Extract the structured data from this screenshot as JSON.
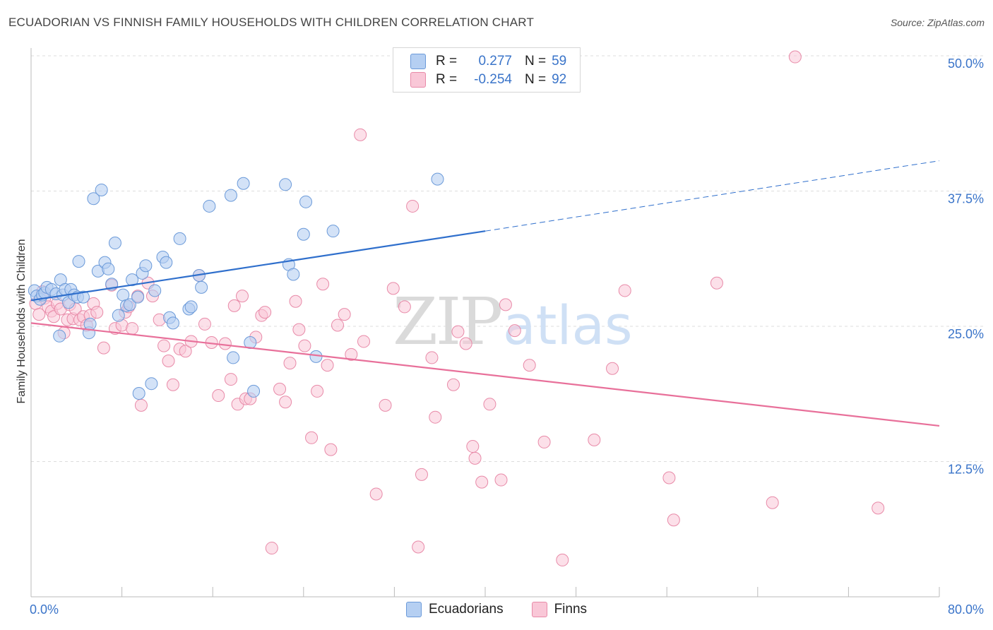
{
  "title": "ECUADORIAN VS FINNISH FAMILY HOUSEHOLDS WITH CHILDREN CORRELATION CHART",
  "source": "Source: ZipAtlas.com",
  "watermark": {
    "zip": "ZIP",
    "atlas": "atlas"
  },
  "legend": {
    "ecuadorians": {
      "r_label": "R =",
      "r_value": "0.277",
      "n_label": "N =",
      "n_value": "59"
    },
    "finns": {
      "r_label": "R =",
      "r_value": "-0.254",
      "n_label": "N =",
      "n_value": "92"
    }
  },
  "colors": {
    "blue_fill": "#b5cff2",
    "blue_stroke": "#6b9ad9",
    "blue_line": "#2f6fcc",
    "pink_fill": "#f9c7d7",
    "pink_stroke": "#e88aa8",
    "pink_line": "#e8709a",
    "tick_label": "#3a74c9",
    "grid": "#dddddd"
  },
  "chart_data": {
    "type": "scatter",
    "title": "ECUADORIAN VS FINNISH FAMILY HOUSEHOLDS WITH CHILDREN CORRELATION CHART",
    "xlabel": "",
    "ylabel": "Family Households with Children",
    "xlim": [
      0,
      80
    ],
    "ylim": [
      0,
      50
    ],
    "x_tick_labels": [
      "0.0%",
      "80.0%"
    ],
    "y_ticks": [
      12.5,
      25.0,
      37.5,
      50.0
    ],
    "y_tick_labels": [
      "12.5%",
      "25.0%",
      "37.5%",
      "50.0%"
    ],
    "series": [
      {
        "name": "Ecuadorians",
        "r": 0.277,
        "n": 59,
        "trend": {
          "x_start": 0,
          "y_start": 27.4,
          "x_solid_end": 40,
          "y_solid_end": 33.8,
          "x_end": 80,
          "y_end": 40.3
        },
        "points": [
          [
            0.3,
            28.3
          ],
          [
            0.5,
            27.8
          ],
          [
            0.8,
            27.5
          ],
          [
            1.0,
            27.9
          ],
          [
            1.2,
            28.1
          ],
          [
            1.4,
            28.6
          ],
          [
            1.8,
            28.4
          ],
          [
            2.2,
            28.0
          ],
          [
            2.5,
            24.1
          ],
          [
            2.6,
            29.3
          ],
          [
            2.8,
            27.9
          ],
          [
            3.0,
            28.4
          ],
          [
            3.3,
            27.2
          ],
          [
            3.5,
            28.4
          ],
          [
            3.8,
            27.9
          ],
          [
            4.1,
            27.7
          ],
          [
            4.2,
            31.0
          ],
          [
            4.6,
            27.7
          ],
          [
            5.1,
            24.4
          ],
          [
            5.2,
            25.2
          ],
          [
            5.5,
            36.8
          ],
          [
            5.9,
            30.1
          ],
          [
            6.2,
            37.6
          ],
          [
            6.5,
            30.9
          ],
          [
            6.8,
            30.3
          ],
          [
            7.1,
            28.9
          ],
          [
            7.4,
            32.7
          ],
          [
            7.7,
            26.0
          ],
          [
            8.1,
            27.9
          ],
          [
            8.4,
            26.9
          ],
          [
            8.7,
            27.0
          ],
          [
            8.9,
            29.3
          ],
          [
            9.4,
            27.7
          ],
          [
            9.5,
            18.8
          ],
          [
            9.8,
            29.9
          ],
          [
            10.1,
            30.6
          ],
          [
            10.6,
            19.7
          ],
          [
            10.9,
            28.3
          ],
          [
            11.6,
            31.4
          ],
          [
            11.9,
            30.9
          ],
          [
            12.2,
            25.8
          ],
          [
            12.5,
            25.3
          ],
          [
            13.1,
            33.1
          ],
          [
            13.9,
            26.6
          ],
          [
            14.1,
            26.8
          ],
          [
            14.8,
            29.7
          ],
          [
            15.0,
            28.6
          ],
          [
            15.7,
            36.1
          ],
          [
            17.6,
            37.1
          ],
          [
            17.8,
            22.1
          ],
          [
            18.7,
            38.2
          ],
          [
            19.3,
            23.5
          ],
          [
            19.6,
            19.0
          ],
          [
            22.4,
            38.1
          ],
          [
            22.7,
            30.7
          ],
          [
            23.1,
            29.8
          ],
          [
            24.0,
            33.5
          ],
          [
            24.2,
            36.5
          ],
          [
            25.1,
            22.2
          ],
          [
            26.6,
            33.8
          ],
          [
            35.8,
            38.6
          ]
        ]
      },
      {
        "name": "Finns",
        "r": -0.254,
        "n": 92,
        "trend": {
          "x_start": 0,
          "y_start": 25.3,
          "x_end": 80,
          "y_end": 15.8
        },
        "points": [
          [
            0.4,
            27.1
          ],
          [
            0.7,
            26.1
          ],
          [
            1.0,
            28.2
          ],
          [
            1.2,
            27.6
          ],
          [
            1.5,
            26.8
          ],
          [
            1.8,
            26.4
          ],
          [
            2.0,
            25.9
          ],
          [
            2.3,
            27.1
          ],
          [
            2.6,
            26.6
          ],
          [
            2.9,
            24.4
          ],
          [
            3.2,
            25.6
          ],
          [
            3.4,
            27.0
          ],
          [
            3.7,
            25.7
          ],
          [
            3.9,
            26.6
          ],
          [
            4.3,
            25.6
          ],
          [
            4.6,
            25.9
          ],
          [
            4.9,
            25.1
          ],
          [
            5.2,
            26.0
          ],
          [
            5.5,
            27.1
          ],
          [
            5.8,
            26.3
          ],
          [
            6.4,
            23.0
          ],
          [
            7.1,
            28.8
          ],
          [
            7.4,
            24.8
          ],
          [
            8.0,
            25.1
          ],
          [
            8.3,
            26.3
          ],
          [
            8.6,
            26.8
          ],
          [
            8.9,
            24.8
          ],
          [
            9.4,
            27.8
          ],
          [
            9.7,
            17.7
          ],
          [
            10.3,
            29.0
          ],
          [
            10.7,
            27.8
          ],
          [
            11.3,
            25.6
          ],
          [
            11.7,
            23.2
          ],
          [
            12.1,
            21.8
          ],
          [
            12.5,
            19.6
          ],
          [
            13.1,
            22.9
          ],
          [
            13.6,
            22.7
          ],
          [
            14.1,
            23.6
          ],
          [
            14.8,
            29.7
          ],
          [
            15.3,
            25.2
          ],
          [
            15.9,
            23.5
          ],
          [
            16.5,
            18.6
          ],
          [
            17.1,
            23.4
          ],
          [
            17.6,
            20.1
          ],
          [
            17.9,
            26.9
          ],
          [
            18.2,
            17.8
          ],
          [
            18.6,
            27.8
          ],
          [
            18.9,
            18.3
          ],
          [
            19.3,
            18.3
          ],
          [
            19.8,
            24.0
          ],
          [
            20.3,
            26.0
          ],
          [
            20.6,
            26.3
          ],
          [
            21.2,
            4.5
          ],
          [
            21.9,
            19.2
          ],
          [
            22.4,
            18.0
          ],
          [
            22.8,
            21.6
          ],
          [
            23.3,
            27.3
          ],
          [
            23.6,
            24.7
          ],
          [
            24.1,
            23.2
          ],
          [
            24.7,
            14.7
          ],
          [
            25.2,
            19.0
          ],
          [
            25.7,
            28.9
          ],
          [
            26.1,
            21.4
          ],
          [
            26.4,
            13.6
          ],
          [
            27.0,
            25.1
          ],
          [
            27.6,
            26.1
          ],
          [
            28.2,
            22.4
          ],
          [
            29.0,
            42.7
          ],
          [
            29.3,
            23.6
          ],
          [
            30.4,
            9.5
          ],
          [
            31.2,
            17.7
          ],
          [
            31.9,
            28.5
          ],
          [
            32.9,
            26.8
          ],
          [
            33.6,
            36.1
          ],
          [
            34.1,
            4.6
          ],
          [
            34.4,
            11.3
          ],
          [
            35.3,
            22.1
          ],
          [
            35.6,
            16.6
          ],
          [
            37.2,
            19.6
          ],
          [
            37.6,
            24.5
          ],
          [
            38.3,
            23.4
          ],
          [
            38.9,
            13.9
          ],
          [
            39.1,
            12.8
          ],
          [
            39.7,
            10.6
          ],
          [
            40.4,
            17.8
          ],
          [
            41.4,
            10.8
          ],
          [
            41.8,
            27.0
          ],
          [
            42.6,
            24.6
          ],
          [
            43.9,
            21.4
          ],
          [
            45.2,
            14.3
          ],
          [
            46.8,
            3.4
          ],
          [
            49.6,
            14.5
          ],
          [
            51.2,
            21.1
          ],
          [
            52.3,
            28.3
          ],
          [
            56.2,
            11.0
          ],
          [
            56.6,
            7.1
          ],
          [
            60.4,
            29.0
          ],
          [
            65.3,
            8.7
          ],
          [
            67.3,
            49.9
          ],
          [
            74.6,
            8.2
          ]
        ]
      }
    ]
  }
}
